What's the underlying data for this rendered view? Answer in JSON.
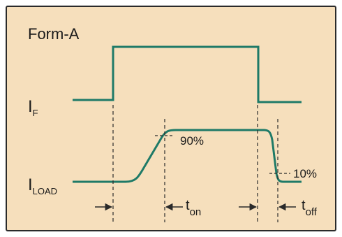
{
  "title": "Form-A",
  "signals": {
    "input": {
      "main": "I",
      "sub": "F"
    },
    "load": {
      "main": "I",
      "sub": "LOAD"
    }
  },
  "levels": {
    "upper": "90%",
    "lower": "10%"
  },
  "timings": {
    "on": {
      "main": "t",
      "sub": "on"
    },
    "off": {
      "main": "t",
      "sub": "off"
    }
  },
  "colors": {
    "background": "#f6dfbc",
    "waveform": "#1e7a67",
    "frame": "#2a2a2a",
    "text": "#1a1a1a"
  }
}
